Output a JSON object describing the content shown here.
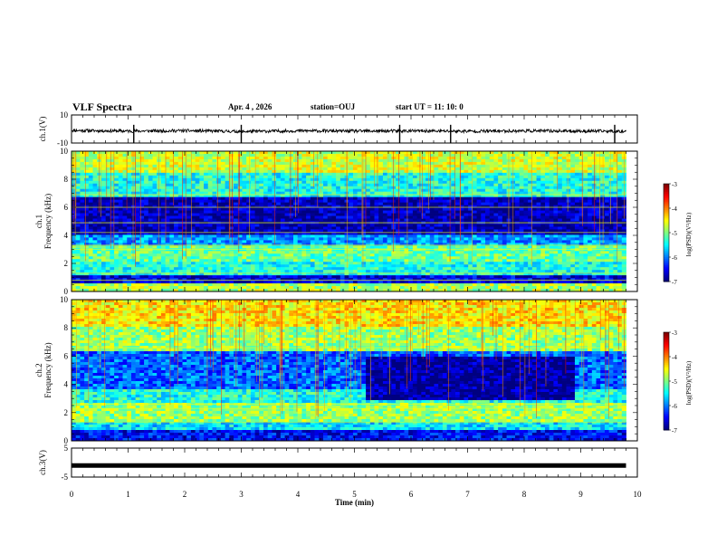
{
  "header": {
    "title": "VLF Spectra",
    "date": "Apr. 4 , 2026",
    "station": "station=OUJ",
    "start": "start UT = 11: 10: 0"
  },
  "colors": {
    "background": "#ffffff",
    "axis": "#000000",
    "trace": "#000000"
  },
  "chart_data": [
    {
      "type": "line",
      "panel": "ch1-waveform",
      "ylabel": "ch.1(V)",
      "xlim": [
        0,
        10
      ],
      "ylim": [
        -10,
        10
      ],
      "ytick_labels": [
        "10",
        "-10"
      ],
      "x": [
        0,
        1,
        2,
        3,
        4,
        5,
        6,
        7,
        8,
        9,
        9.8
      ],
      "values": [
        -1,
        -1.5,
        -1.2,
        -1.8,
        -1.3,
        -1.5,
        -1.4,
        -1.6,
        -1.3,
        -1.5,
        -1.6
      ],
      "spike_times": [
        1.1,
        3.0,
        5.8,
        6.7,
        9.6
      ]
    },
    {
      "type": "heatmap",
      "panel": "ch1-spectrogram",
      "ylabel_top": "ch.1",
      "ylabel": "Frequency (kHz)",
      "xlim": [
        0,
        10
      ],
      "ylim": [
        0,
        10
      ],
      "ytick_labels": [
        "0",
        "2",
        "4",
        "6",
        "8",
        "10"
      ],
      "data_end_min": 9.8,
      "colorbar_label": "log(PSD)(V²/Hz)",
      "colorbar_range": [
        -7,
        -3
      ],
      "colorbar_ticks": [
        "-3",
        "-4",
        "-5",
        "-6",
        "-7"
      ],
      "bands": [
        {
          "from_khz": 0,
          "to_khz": 0.5,
          "level": -4.8
        },
        {
          "from_khz": 0.5,
          "to_khz": 1.2,
          "level": -6.6
        },
        {
          "from_khz": 1.2,
          "to_khz": 2.2,
          "level": -5.4
        },
        {
          "from_khz": 2.2,
          "to_khz": 3.2,
          "level": -5.1
        },
        {
          "from_khz": 3.2,
          "to_khz": 4.0,
          "level": -5.9
        },
        {
          "from_khz": 4.0,
          "to_khz": 6.8,
          "level": -6.8
        },
        {
          "from_khz": 6.8,
          "to_khz": 8.4,
          "level": -5.4
        },
        {
          "from_khz": 8.4,
          "to_khz": 10,
          "level": -4.7
        }
      ],
      "lines_khz": [
        0.8,
        1.3,
        3.0,
        3.3,
        4.2,
        4.9,
        6.0,
        6.9
      ]
    },
    {
      "type": "heatmap",
      "panel": "ch2-spectrogram",
      "ylabel_top": "ch.2",
      "ylabel": "Frequency (kHz)",
      "xlim": [
        0,
        10
      ],
      "ylim": [
        0,
        10
      ],
      "ytick_labels": [
        "0",
        "2",
        "4",
        "6",
        "8",
        "10"
      ],
      "data_end_min": 9.8,
      "colorbar_label": "log(PSD)(V²/Hz)",
      "colorbar_range": [
        -7,
        -3
      ],
      "colorbar_ticks": [
        "-3",
        "-4",
        "-5",
        "-6",
        "-7"
      ],
      "bands": [
        {
          "from_khz": 0,
          "to_khz": 0.8,
          "level": -6.5
        },
        {
          "from_khz": 0.8,
          "to_khz": 1.4,
          "level": -5.6
        },
        {
          "from_khz": 1.4,
          "to_khz": 2.7,
          "level": -4.9
        },
        {
          "from_khz": 2.7,
          "to_khz": 3.6,
          "level": -5.4
        },
        {
          "from_khz": 3.6,
          "to_khz": 6.3,
          "level": -6.1
        },
        {
          "from_khz": 6.3,
          "to_khz": 8.0,
          "level": -4.9
        },
        {
          "from_khz": 8.0,
          "to_khz": 10,
          "level": -4.4
        }
      ],
      "dark_region": {
        "t_from": 5.2,
        "t_to": 8.9,
        "from_khz": 2.8,
        "to_khz": 6.0,
        "level": -6.9
      },
      "lines_khz": [
        1.3,
        2.3,
        2.6,
        6.6
      ]
    },
    {
      "type": "line",
      "panel": "ch3-waveform",
      "ylabel": "ch.3(V)",
      "xlim": [
        0,
        10
      ],
      "ylim": [
        -5,
        5
      ],
      "ytick_labels": [
        "5",
        "-5"
      ],
      "x": [
        0,
        9.8
      ],
      "values": [
        -1,
        -1
      ]
    }
  ],
  "xaxis": {
    "label": "Time (min)",
    "tick_labels": [
      "0",
      "1",
      "2",
      "3",
      "4",
      "5",
      "6",
      "7",
      "8",
      "9",
      "10"
    ]
  }
}
